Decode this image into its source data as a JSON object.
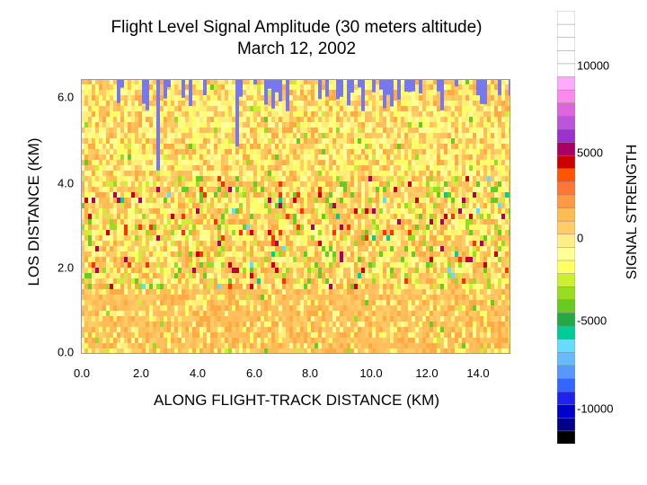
{
  "chart_data": {
    "type": "heatmap",
    "title": "Flight Level Signal Amplitude (30 meters altitude)",
    "subtitle": "March 12, 2002",
    "xlabel": "ALONG FLIGHT-TRACK DISTANCE (KM)",
    "ylabel": "LOS DISTANCE (KM)",
    "colorbar_label": "SIGNAL STRENGTH",
    "x_ticks": [
      "0.0",
      "2.0",
      "4.0",
      "6.0",
      "8.0",
      "10.0",
      "12.0",
      "14.0"
    ],
    "x_tick_values": [
      0,
      2,
      4,
      6,
      8,
      10,
      12,
      14
    ],
    "y_ticks": [
      "0.0",
      "2.0",
      "4.0",
      "6.0"
    ],
    "y_tick_values": [
      0,
      2,
      4,
      6
    ],
    "xlim": [
      0,
      14.6
    ],
    "ylim": [
      0,
      6.4
    ],
    "colorbar_ticks": [
      "10000",
      "5000",
      "0",
      "-5000",
      "-10000"
    ],
    "colorbar_tick_values": [
      10000,
      5000,
      0,
      -5000,
      -10000
    ],
    "colorbar_range": [
      -12000,
      14000
    ],
    "colorbar_colors": [
      "#000000",
      "#000088",
      "#0000cc",
      "#2222ee",
      "#3366ff",
      "#5599ff",
      "#66bbff",
      "#66ddff",
      "#00cc99",
      "#22aa44",
      "#66cc22",
      "#99dd22",
      "#ccee33",
      "#ffff66",
      "#ffff99",
      "#ffee88",
      "#ffcc66",
      "#ffbb55",
      "#ff9944",
      "#ff7733",
      "#ff5500",
      "#cc0000",
      "#aa0066",
      "#9933cc",
      "#bb55dd",
      "#dd66dd",
      "#ff88ee",
      "#ffaaff",
      "#ffffff",
      "#ffffff",
      "#ffffff",
      "#ffffff",
      "#ffffff"
    ]
  }
}
